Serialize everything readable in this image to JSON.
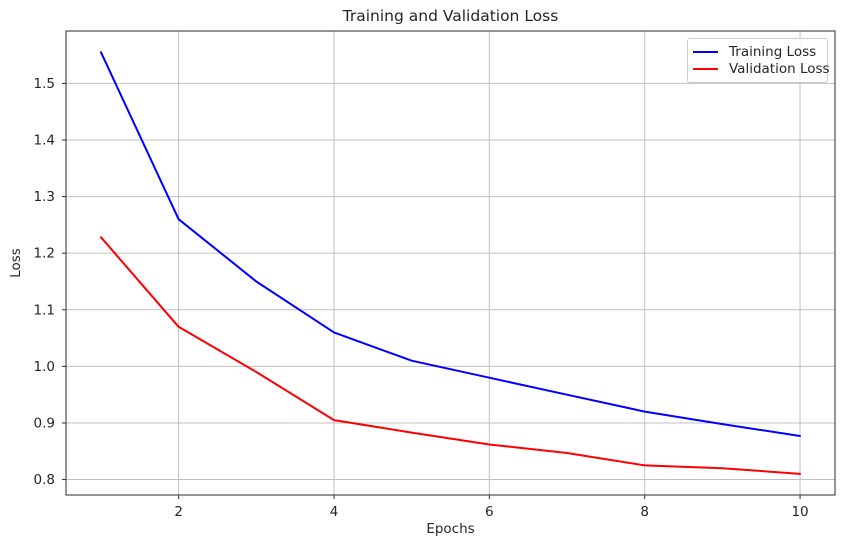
{
  "figure": {
    "background": "#ffffff",
    "text_color": "#262626",
    "grid_color": "#c0c0c0",
    "spine_color": "#2b2b2b"
  },
  "chart_data": {
    "type": "line",
    "title": "Training and Validation Loss",
    "xlabel": "Epochs",
    "ylabel": "Loss",
    "x": [
      1,
      2,
      3,
      4,
      5,
      6,
      7,
      8,
      9,
      10
    ],
    "series": [
      {
        "name": "Training Loss",
        "color": "#0000ff",
        "values": [
          1.555,
          1.26,
          1.15,
          1.06,
          1.01,
          0.98,
          0.95,
          0.92,
          0.898,
          0.877
        ]
      },
      {
        "name": "Validation Loss",
        "color": "#ff0000",
        "values": [
          1.228,
          1.07,
          0.99,
          0.905,
          0.883,
          0.862,
          0.847,
          0.825,
          0.82,
          0.81
        ]
      }
    ],
    "xlim": [
      0.55,
      10.45
    ],
    "ylim": [
      0.7727,
      1.5926
    ],
    "x_ticks": [
      2,
      4,
      6,
      8,
      10
    ],
    "y_ticks": [
      0.8,
      0.9,
      1.0,
      1.1,
      1.2,
      1.3,
      1.4,
      1.5
    ],
    "grid": true,
    "legend_position": "upper right"
  }
}
